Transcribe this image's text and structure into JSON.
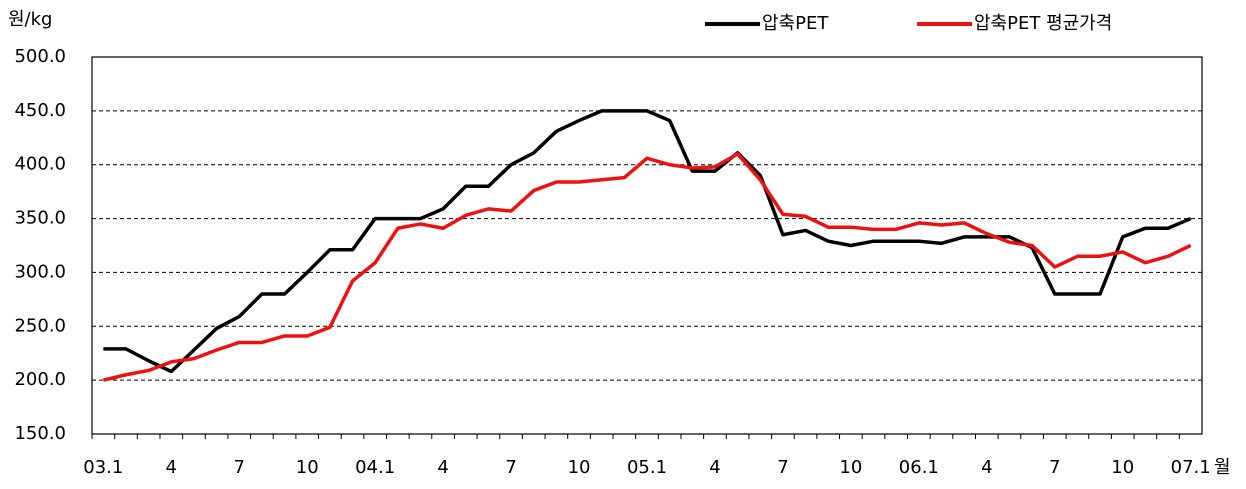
{
  "chart_data": {
    "type": "line",
    "y_label": "원/kg",
    "x_label": "월",
    "categories": [
      "03.1",
      null,
      null,
      "4",
      null,
      null,
      "7",
      null,
      null,
      "10",
      null,
      null,
      "04.1",
      null,
      null,
      "4",
      null,
      null,
      "7",
      null,
      null,
      "10",
      null,
      null,
      "05.1",
      null,
      null,
      "4",
      null,
      null,
      "7",
      null,
      null,
      "10",
      null,
      null,
      "06.1",
      null,
      null,
      "4",
      null,
      null,
      "7",
      null,
      null,
      "10",
      null,
      null,
      "07.1"
    ],
    "series": [
      {
        "name": "압축PET",
        "color": "#000000",
        "values": [
          229,
          229,
          218,
          208,
          228,
          248,
          259,
          280,
          280,
          300,
          321,
          321,
          350,
          350,
          350,
          359,
          380,
          380,
          400,
          411,
          431,
          441,
          450,
          450,
          450,
          441,
          394,
          394,
          411,
          390,
          335,
          339,
          329,
          325,
          329,
          329,
          329,
          327,
          333,
          333,
          333,
          323,
          280,
          280,
          280,
          333,
          341,
          341,
          350
        ]
      },
      {
        "name": "압축PET 평균가격",
        "color": "#ee1111",
        "values": [
          200,
          205,
          209,
          217,
          220,
          228,
          235,
          235,
          241,
          241,
          249,
          292,
          309,
          341,
          345,
          341,
          353,
          359,
          357,
          376,
          384,
          384,
          386,
          388,
          406,
          400,
          397,
          398,
          410,
          386,
          354,
          352,
          342,
          342,
          340,
          340,
          346,
          344,
          346,
          336,
          328,
          325,
          305,
          315,
          315,
          319,
          309,
          315,
          325
        ]
      }
    ],
    "ylim": [
      150,
      500
    ],
    "yticks": [
      {
        "value": 150,
        "label": "150.0"
      },
      {
        "value": 200,
        "label": "200.0"
      },
      {
        "value": 250,
        "label": "250.0"
      },
      {
        "value": 300,
        "label": "300.0"
      },
      {
        "value": 350,
        "label": "350.0"
      },
      {
        "value": 400,
        "label": "400.0"
      },
      {
        "value": 450,
        "label": "450.0"
      },
      {
        "value": 500,
        "label": "500.0"
      }
    ],
    "grid": true,
    "legend": "top-right"
  }
}
